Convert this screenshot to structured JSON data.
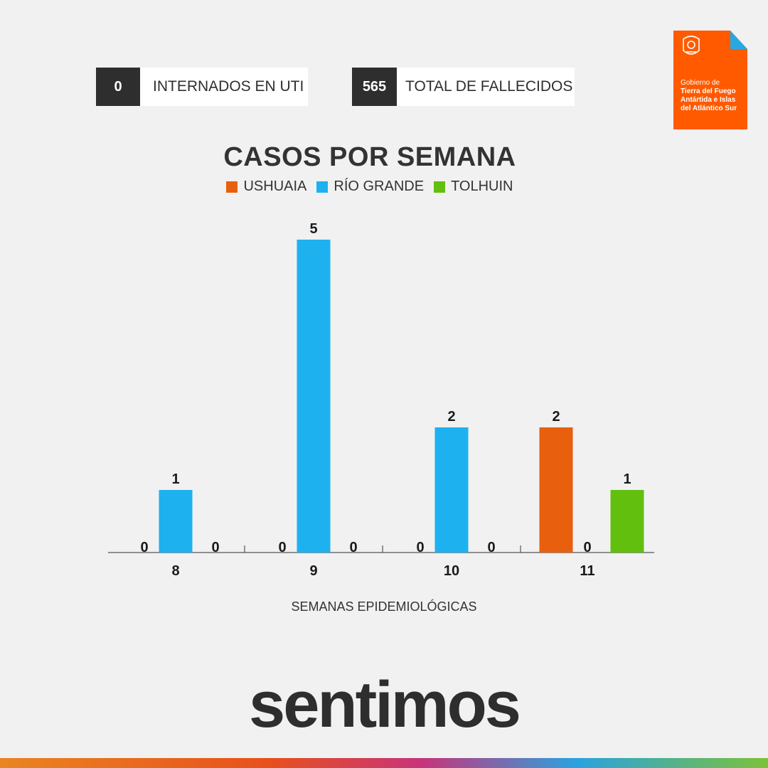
{
  "stats": [
    {
      "value": "0",
      "label": "INTERNADOS EN UTI"
    },
    {
      "value": "565",
      "label": "TOTAL DE FALLECIDOS"
    }
  ],
  "logo": {
    "line1": "Gobierno de",
    "line2": "Tierra del Fuego",
    "line3": "Antártida e Islas",
    "line4": "del Atlántico Sur",
    "color": "#ff5a00"
  },
  "chart_data": {
    "type": "bar",
    "title": "CASOS POR SEMANA",
    "xlabel": "SEMANAS EPIDEMIOLÓGICAS",
    "ylabel": "",
    "categories": [
      "8",
      "9",
      "10",
      "11"
    ],
    "series": [
      {
        "name": "USHUAIA",
        "color": "#e8600e",
        "values": [
          0,
          0,
          0,
          2
        ]
      },
      {
        "name": "RÍO GRANDE",
        "color": "#1eb1f0",
        "values": [
          1,
          5,
          2,
          0
        ]
      },
      {
        "name": "TOLHUIN",
        "color": "#62bf0e",
        "values": [
          0,
          0,
          0,
          1
        ]
      }
    ],
    "ylim": [
      0,
      5
    ],
    "grid": false,
    "legend": "top-center"
  },
  "brand": {
    "text": "sentimos"
  }
}
